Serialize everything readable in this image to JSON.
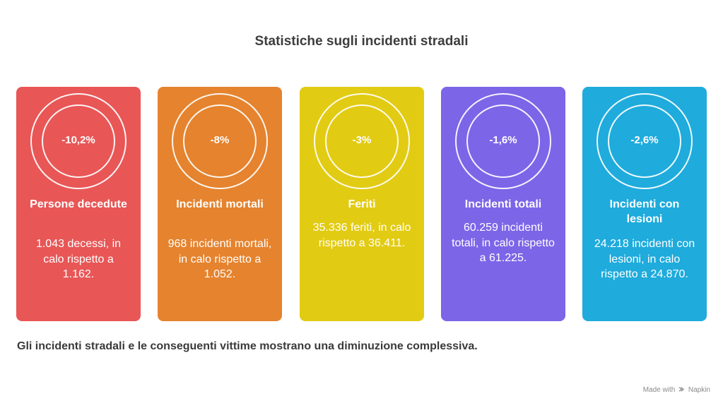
{
  "title": "Statistiche sugli incidenti stradali",
  "cards": [
    {
      "percent": "-10,2%",
      "title": "Persone decedute",
      "description": "1.043 decessi, in calo rispetto a 1.162.",
      "color": "#e85656"
    },
    {
      "percent": "-8%",
      "title": "Incidenti mortali",
      "description": "968 incidenti mortali, in calo rispetto a 1.052.",
      "color": "#e5832e"
    },
    {
      "percent": "-3%",
      "title": "Feriti",
      "description": "35.336 feriti, in calo rispetto a 36.411.",
      "color": "#e2cb13"
    },
    {
      "percent": "-1,6%",
      "title": "Incidenti totali",
      "description": "60.259 incidenti totali, in calo rispetto a 61.225.",
      "color": "#7d65e8"
    },
    {
      "percent": "-2,6%",
      "title": "Incidenti con lesioni",
      "description": "24.218 incidenti con lesioni, in calo rispetto a 24.870.",
      "color": "#1fabdc"
    }
  ],
  "summary": "Gli incidenti stradali e le conseguenti vittime mostrano una diminuzione complessiva.",
  "credit": {
    "made_with": "Made with",
    "brand": "Napkin",
    "icon": "napkin-logo-icon"
  }
}
